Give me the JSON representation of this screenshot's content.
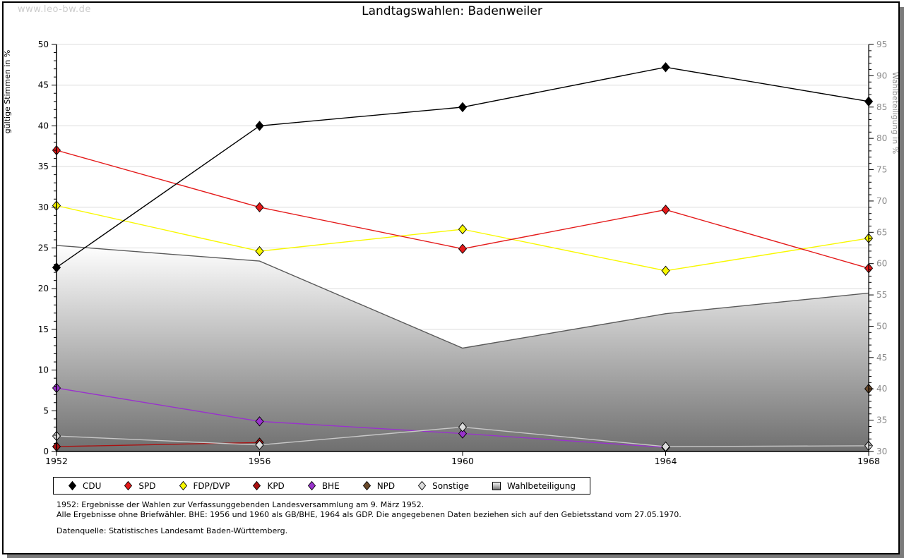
{
  "watermark": "www.leo-bw.de",
  "title": "Landtagswahlen: Badenweiler",
  "colors": {
    "grid": "#dcdcdc",
    "axis": "#000000",
    "right_axis_text": "#8c8c8c",
    "area_edge": "#5a5a5a",
    "area_gradient_top": "#ffffff",
    "area_gradient_bottom": "#6f6f6f",
    "watermark": "#cccccc"
  },
  "chart_data": {
    "type": "line",
    "title": "Landtagswahlen: Badenweiler",
    "x": [
      1952,
      1956,
      1960,
      1964,
      1968
    ],
    "left_axis": {
      "label": "gültige Stimmen in %",
      "min": 0,
      "max": 50,
      "tick_step": 5,
      "minor_step": 1
    },
    "right_axis": {
      "label": "Wahlbeteiligung in %",
      "min": 30,
      "max": 95,
      "tick_step": 5,
      "minor_step": 1
    },
    "grid": "horizontal",
    "legend_position": "bottom",
    "series": [
      {
        "name": "CDU",
        "axis": "left",
        "color": "#000000",
        "values": [
          22.6,
          40.0,
          42.3,
          47.2,
          43.0
        ]
      },
      {
        "name": "SPD",
        "axis": "left",
        "color": "#e41a1a",
        "values": [
          37.0,
          30.0,
          24.9,
          29.7,
          22.5
        ]
      },
      {
        "name": "FDP/DVP",
        "axis": "left",
        "color": "#f8f800",
        "values": [
          30.2,
          24.6,
          27.3,
          22.2,
          26.2
        ]
      },
      {
        "name": "KPD",
        "axis": "left",
        "color": "#aa1111",
        "values": [
          0.6,
          1.1,
          null,
          null,
          null
        ]
      },
      {
        "name": "BHE",
        "axis": "left",
        "color": "#9933cc",
        "values": [
          7.8,
          3.7,
          2.2,
          0.5,
          null
        ]
      },
      {
        "name": "NPD",
        "axis": "left",
        "color": "#6b4a2b",
        "values": [
          null,
          null,
          null,
          null,
          7.7
        ]
      },
      {
        "name": "Sonstige",
        "axis": "left",
        "color": "#dcdcdc",
        "line_color": "#c8c8c8",
        "values": [
          1.9,
          0.8,
          3.0,
          0.6,
          0.7
        ]
      },
      {
        "name": "Wahlbeteiligung",
        "axis": "right",
        "type": "area",
        "values": [
          62.9,
          60.4,
          46.5,
          52.0,
          55.3
        ]
      }
    ]
  },
  "footnotes": {
    "line1": "1952: Ergebnisse der Wahlen zur Verfassunggebenden Landesversammlung am 9. März 1952.",
    "line2": "Alle Ergebnisse ohne Briefwähler. BHE: 1956 und 1960 als GB/BHE, 1964 als GDP. Die angegebenen Daten beziehen sich auf den Gebietsstand vom 27.05.1970.",
    "source": "Datenquelle: Statistisches Landesamt Baden-Württemberg."
  }
}
